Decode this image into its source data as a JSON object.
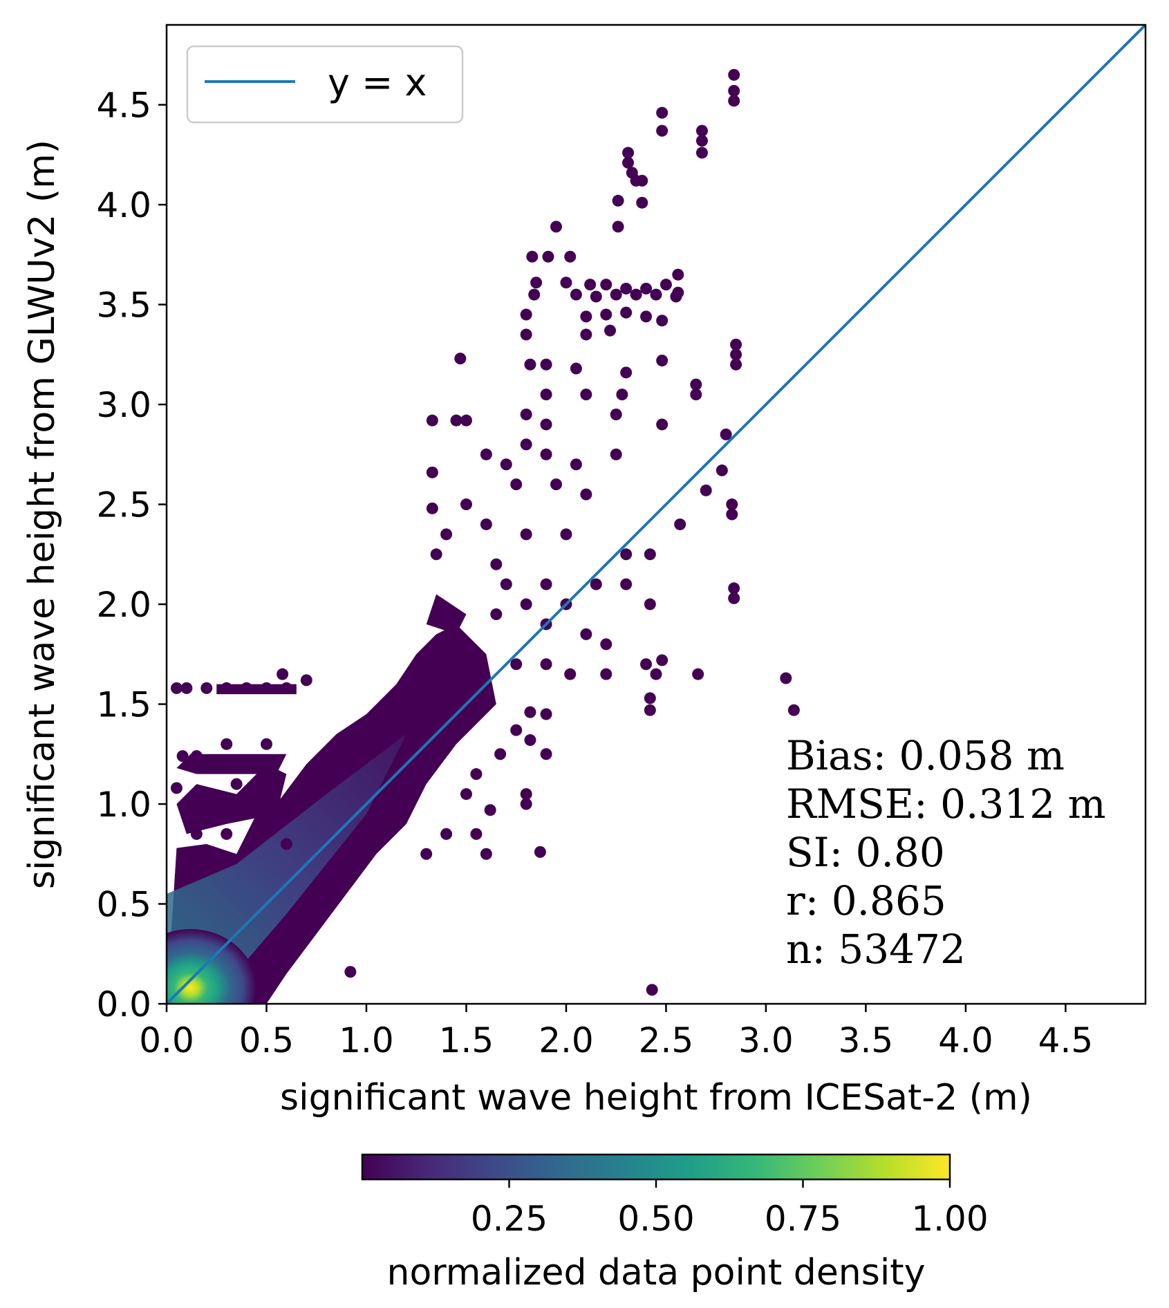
{
  "chart_data": {
    "type": "scatter",
    "xlabel": "significant wave height from ICESat-2 (m)",
    "ylabel": "significant wave height from GLWUv2 (m)",
    "xlim": [
      0,
      4.9
    ],
    "ylim": [
      0,
      4.9
    ],
    "xticks": [
      "0.0",
      "0.5",
      "1.0",
      "1.5",
      "2.0",
      "2.5",
      "3.0",
      "3.5",
      "4.0",
      "4.5"
    ],
    "yticks": [
      "0.0",
      "0.5",
      "1.0",
      "1.5",
      "2.0",
      "2.5",
      "3.0",
      "3.5",
      "4.0",
      "4.5"
    ],
    "reference_line": {
      "label": "y = x",
      "color": "#1f77b4",
      "x": [
        0,
        4.9
      ],
      "y": [
        0,
        4.9
      ]
    },
    "legend": {
      "entries": [
        "y = x"
      ],
      "position": "top-left"
    },
    "stats": [
      "Bias: 0.058 m",
      "RMSE: 0.312 m",
      "SI: 0.80",
      "r: 0.865",
      "n: 53472"
    ],
    "colorbar": {
      "label": "normalized data point density",
      "colormap": "viridis",
      "range": [
        0,
        1
      ],
      "ticks": [
        "0.25",
        "0.50",
        "0.75",
        "1.00"
      ],
      "colors": [
        "#440154",
        "#482878",
        "#3e4989",
        "#31688e",
        "#26828e",
        "#1f9e89",
        "#35b779",
        "#6ece58",
        "#b5de2b",
        "#fde725"
      ]
    },
    "point_color_low": "#440154",
    "density_hotspot": {
      "x": 0.12,
      "y": 0.08
    },
    "outliers": [
      [
        2.84,
        4.65
      ],
      [
        2.84,
        4.57
      ],
      [
        2.84,
        4.52
      ],
      [
        2.48,
        4.46
      ],
      [
        2.48,
        4.37
      ],
      [
        2.68,
        4.37
      ],
      [
        2.68,
        4.32
      ],
      [
        2.68,
        4.26
      ],
      [
        2.31,
        4.26
      ],
      [
        2.31,
        4.21
      ],
      [
        2.33,
        4.16
      ],
      [
        2.35,
        4.12
      ],
      [
        2.38,
        4.12
      ],
      [
        2.26,
        4.02
      ],
      [
        2.38,
        4.01
      ],
      [
        1.95,
        3.89
      ],
      [
        2.26,
        3.89
      ],
      [
        1.83,
        3.74
      ],
      [
        1.91,
        3.74
      ],
      [
        2.02,
        3.74
      ],
      [
        1.85,
        3.61
      ],
      [
        2.0,
        3.61
      ],
      [
        2.12,
        3.6
      ],
      [
        2.2,
        3.6
      ],
      [
        2.3,
        3.58
      ],
      [
        2.4,
        3.58
      ],
      [
        2.5,
        3.6
      ],
      [
        2.56,
        3.65
      ],
      [
        2.56,
        3.56
      ],
      [
        1.84,
        3.55
      ],
      [
        2.05,
        3.55
      ],
      [
        2.15,
        3.54
      ],
      [
        2.25,
        3.55
      ],
      [
        2.35,
        3.55
      ],
      [
        2.45,
        3.55
      ],
      [
        2.55,
        3.54
      ],
      [
        1.8,
        3.45
      ],
      [
        2.1,
        3.44
      ],
      [
        2.2,
        3.45
      ],
      [
        2.3,
        3.46
      ],
      [
        2.4,
        3.44
      ],
      [
        2.48,
        3.42
      ],
      [
        1.8,
        3.35
      ],
      [
        2.1,
        3.35
      ],
      [
        2.22,
        3.37
      ],
      [
        1.82,
        3.2
      ],
      [
        1.9,
        3.2
      ],
      [
        2.05,
        3.18
      ],
      [
        2.85,
        3.3
      ],
      [
        2.85,
        3.25
      ],
      [
        2.85,
        3.2
      ],
      [
        1.47,
        3.23
      ],
      [
        2.3,
        3.16
      ],
      [
        2.48,
        3.22
      ],
      [
        1.9,
        3.05
      ],
      [
        2.1,
        3.05
      ],
      [
        2.28,
        3.05
      ],
      [
        2.65,
        3.1
      ],
      [
        2.65,
        3.05
      ],
      [
        1.33,
        2.92
      ],
      [
        1.45,
        2.92
      ],
      [
        1.5,
        2.92
      ],
      [
        1.8,
        2.95
      ],
      [
        1.9,
        2.9
      ],
      [
        2.25,
        2.95
      ],
      [
        2.48,
        2.9
      ],
      [
        2.8,
        2.85
      ],
      [
        1.8,
        2.8
      ],
      [
        1.9,
        2.75
      ],
      [
        1.6,
        2.75
      ],
      [
        1.7,
        2.7
      ],
      [
        1.33,
        2.66
      ],
      [
        2.05,
        2.7
      ],
      [
        2.25,
        2.75
      ],
      [
        2.78,
        2.67
      ],
      [
        2.7,
        2.57
      ],
      [
        1.75,
        2.6
      ],
      [
        1.95,
        2.6
      ],
      [
        2.1,
        2.55
      ],
      [
        1.5,
        2.5
      ],
      [
        1.33,
        2.48
      ],
      [
        2.83,
        2.5
      ],
      [
        2.83,
        2.45
      ],
      [
        2.57,
        2.4
      ],
      [
        1.6,
        2.4
      ],
      [
        1.8,
        2.35
      ],
      [
        1.4,
        2.35
      ],
      [
        2.0,
        2.35
      ],
      [
        1.35,
        2.25
      ],
      [
        1.65,
        2.2
      ],
      [
        2.3,
        2.25
      ],
      [
        2.42,
        2.25
      ],
      [
        1.7,
        2.1
      ],
      [
        1.9,
        2.1
      ],
      [
        2.15,
        2.1
      ],
      [
        2.3,
        2.1
      ],
      [
        2.84,
        2.08
      ],
      [
        2.84,
        2.03
      ],
      [
        1.8,
        2.0
      ],
      [
        2.0,
        2.0
      ],
      [
        2.42,
        2.0
      ],
      [
        1.65,
        1.95
      ],
      [
        1.9,
        1.9
      ],
      [
        2.1,
        1.85
      ],
      [
        2.2,
        1.8
      ],
      [
        2.4,
        1.7
      ],
      [
        2.48,
        1.72
      ],
      [
        1.75,
        1.7
      ],
      [
        1.9,
        1.7
      ],
      [
        2.02,
        1.65
      ],
      [
        2.2,
        1.65
      ],
      [
        2.45,
        1.65
      ],
      [
        2.66,
        1.65
      ],
      [
        3.1,
        1.63
      ],
      [
        3.14,
        1.47
      ],
      [
        2.42,
        1.53
      ],
      [
        2.42,
        1.47
      ],
      [
        1.82,
        1.46
      ],
      [
        1.9,
        1.45
      ],
      [
        1.75,
        1.37
      ],
      [
        1.82,
        1.32
      ],
      [
        1.9,
        1.25
      ],
      [
        1.67,
        1.25
      ],
      [
        1.55,
        1.15
      ],
      [
        1.5,
        1.05
      ],
      [
        1.8,
        1.05
      ],
      [
        1.8,
        1.0
      ],
      [
        1.62,
        0.97
      ],
      [
        1.55,
        0.85
      ],
      [
        1.6,
        0.75
      ],
      [
        1.87,
        0.76
      ],
      [
        1.4,
        0.85
      ],
      [
        1.3,
        0.75
      ],
      [
        0.92,
        0.16
      ],
      [
        2.43,
        0.07
      ],
      [
        0.05,
        1.58
      ],
      [
        0.1,
        1.58
      ],
      [
        0.2,
        1.58
      ],
      [
        0.3,
        1.58
      ],
      [
        0.4,
        1.58
      ],
      [
        0.5,
        1.58
      ],
      [
        0.6,
        1.58
      ],
      [
        0.7,
        1.62
      ],
      [
        0.58,
        1.65
      ],
      [
        0.05,
        1.08
      ],
      [
        0.08,
        1.24
      ],
      [
        0.15,
        1.24
      ],
      [
        0.3,
        1.3
      ],
      [
        0.5,
        1.3
      ],
      [
        0.35,
        1.1
      ],
      [
        0.45,
        1.0
      ],
      [
        0.55,
        0.95
      ],
      [
        0.15,
        0.85
      ],
      [
        0.3,
        0.85
      ],
      [
        0.6,
        0.8
      ],
      [
        0.1,
        0.75
      ]
    ]
  }
}
